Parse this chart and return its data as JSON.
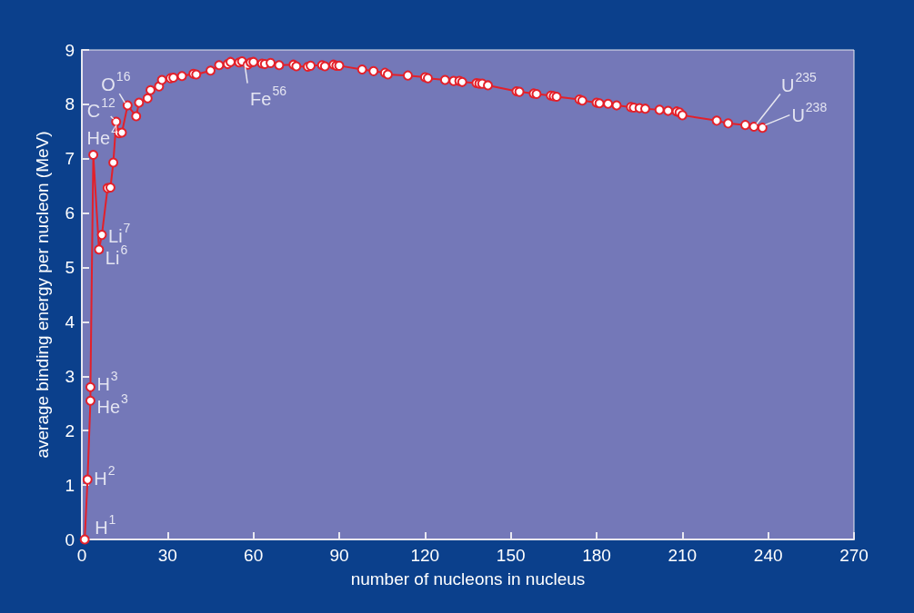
{
  "chart_data": {
    "type": "line",
    "xlabel": "number of nucleons in nucleus",
    "ylabel": "average binding energy per nucleon (MeV)",
    "x": [
      1,
      2,
      3,
      3,
      4,
      6,
      7,
      9,
      10,
      11,
      12,
      13,
      14,
      16,
      19,
      20,
      23,
      24,
      27,
      28,
      31,
      32,
      35,
      39,
      40,
      45,
      48,
      51,
      52,
      55,
      56,
      58,
      59,
      60,
      63,
      64,
      66,
      69,
      74,
      75,
      79,
      80,
      84,
      85,
      88,
      89,
      90,
      98,
      102,
      106,
      107,
      114,
      120,
      121,
      127,
      130,
      132,
      133,
      138,
      139,
      140,
      142,
      152,
      153,
      158,
      159,
      164,
      165,
      166,
      174,
      175,
      180,
      181,
      184,
      187,
      192,
      193,
      195,
      197,
      202,
      205,
      208,
      209,
      210,
      222,
      226,
      232,
      235,
      238
    ],
    "series": [
      {
        "color": "#e3202a",
        "values": [
          0,
          1.1,
          2.55,
          2.8,
          7.07,
          5.33,
          5.6,
          6.46,
          6.47,
          6.93,
          7.68,
          7.47,
          7.48,
          7.98,
          7.78,
          8.03,
          8.11,
          8.26,
          8.33,
          8.45,
          8.48,
          8.49,
          8.52,
          8.56,
          8.55,
          8.62,
          8.72,
          8.74,
          8.78,
          8.77,
          8.79,
          8.73,
          8.77,
          8.78,
          8.75,
          8.74,
          8.76,
          8.72,
          8.73,
          8.7,
          8.69,
          8.71,
          8.72,
          8.7,
          8.73,
          8.71,
          8.71,
          8.64,
          8.61,
          8.58,
          8.55,
          8.53,
          8.5,
          8.48,
          8.45,
          8.43,
          8.43,
          8.41,
          8.39,
          8.38,
          8.38,
          8.35,
          8.24,
          8.23,
          8.2,
          8.19,
          8.16,
          8.15,
          8.14,
          8.09,
          8.07,
          8.03,
          8.02,
          8.01,
          7.98,
          7.95,
          7.94,
          7.93,
          7.92,
          7.9,
          7.88,
          7.87,
          7.85,
          7.8,
          7.7,
          7.65,
          7.62,
          7.59,
          7.57
        ]
      }
    ],
    "xlim": [
      0,
      270
    ],
    "xticks": [
      0,
      30,
      60,
      90,
      120,
      150,
      180,
      210,
      240,
      270
    ],
    "ylim": [
      0,
      9
    ],
    "yticks": [
      0,
      1,
      2,
      3,
      4,
      5,
      6,
      7,
      8,
      9
    ],
    "grid": false,
    "marker": "circle",
    "line_style": "solid",
    "annotations": [
      {
        "text": "H$^{1}$",
        "x": 1,
        "y": 0
      },
      {
        "text": "H$^{2}$",
        "x": 2,
        "y": 1.1
      },
      {
        "text": "H$^{3}$",
        "x": 3,
        "y": 2.8
      },
      {
        "text": "He$^{3}$",
        "x": 3,
        "y": 2.55
      },
      {
        "text": "He$^{4}$",
        "x": 4,
        "y": 7.07
      },
      {
        "text": "Li$^{6}$",
        "x": 6,
        "y": 5.33
      },
      {
        "text": "Li$^{7}$",
        "x": 7,
        "y": 5.6
      },
      {
        "text": "C$^{12}$",
        "x": 12,
        "y": 7.68
      },
      {
        "text": "O$^{16}$",
        "x": 16,
        "y": 7.98
      },
      {
        "text": "Fe$^{56}$",
        "x": 56,
        "y": 8.79
      },
      {
        "text": "U$^{235}$",
        "x": 235,
        "y": 7.59
      },
      {
        "text": "U$^{238}$",
        "x": 238,
        "y": 7.57
      }
    ]
  }
}
